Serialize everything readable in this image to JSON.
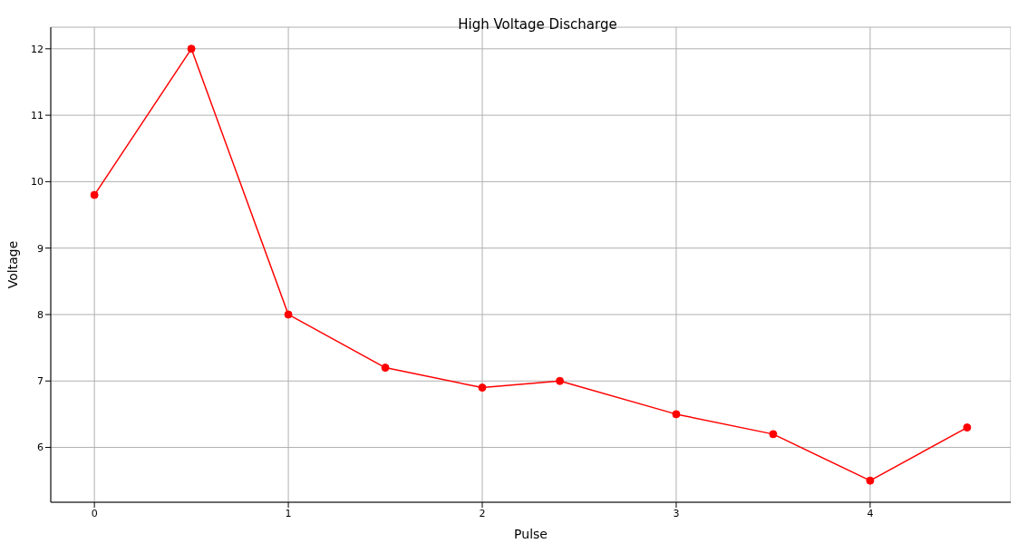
{
  "chart_data": {
    "type": "line",
    "title": "High Voltage Discharge",
    "xlabel": "Pulse",
    "ylabel": "Voltage",
    "x": [
      0,
      0.5,
      1,
      1.5,
      2,
      2.4,
      3,
      3.5,
      4,
      4.5
    ],
    "series": [
      {
        "color": "#ff0000",
        "values": [
          9.8,
          12,
          8,
          7.2,
          6.9,
          7.0,
          6.5,
          6.2,
          5.5,
          6.3
        ]
      }
    ],
    "xlim": [
      -0.225,
      4.725
    ],
    "xticks": [
      0,
      1,
      2,
      3,
      4
    ],
    "ylim": [
      5.175,
      12.325
    ],
    "yticks": [
      6,
      7,
      8,
      9,
      10,
      11,
      12
    ],
    "grid": true,
    "marker": "circle",
    "line_style": "solid"
  }
}
